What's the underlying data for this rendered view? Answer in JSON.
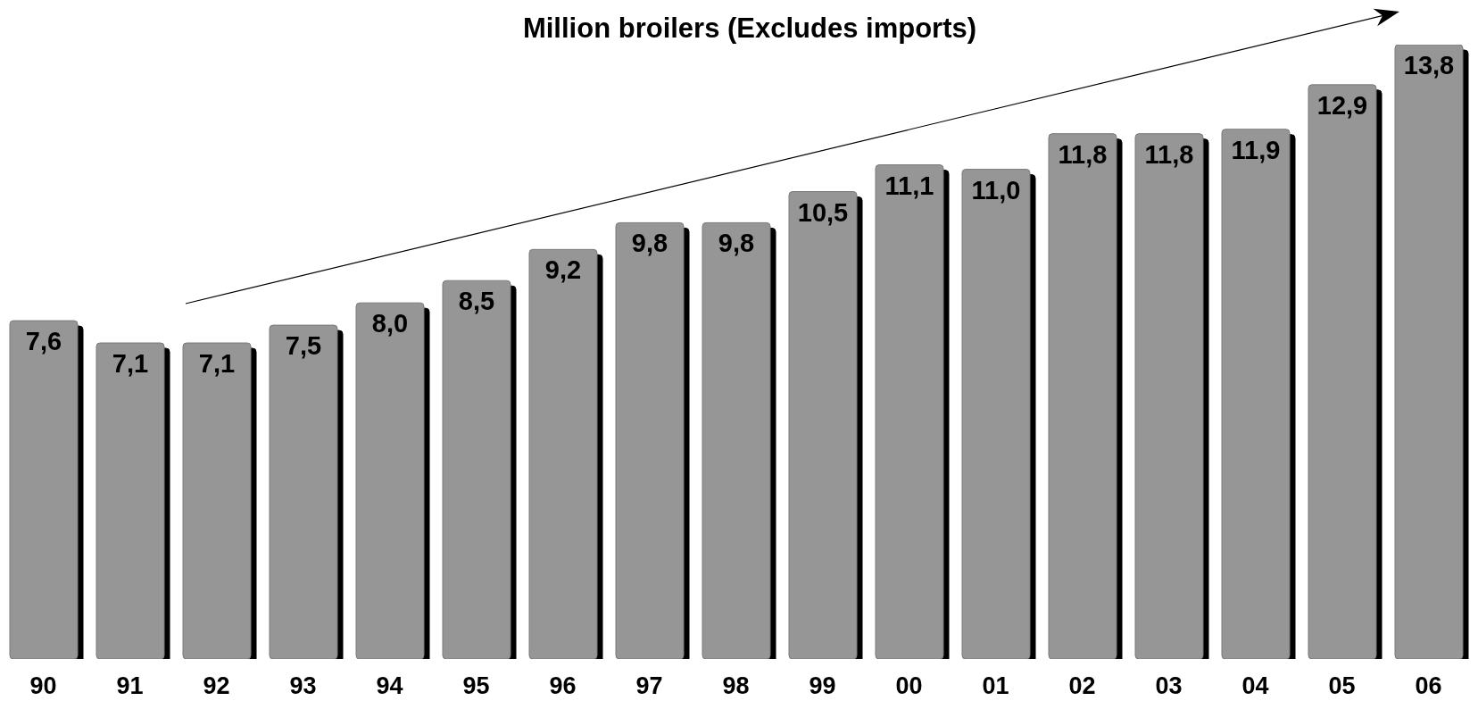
{
  "chart_data": {
    "type": "bar",
    "title": "Million broilers (Excludes imports)",
    "categories": [
      "90",
      "91",
      "92",
      "93",
      "94",
      "95",
      "96",
      "97",
      "98",
      "99",
      "00",
      "01",
      "02",
      "03",
      "04",
      "05",
      "06"
    ],
    "values": [
      7.6,
      7.1,
      7.1,
      7.5,
      8.0,
      8.5,
      9.2,
      9.8,
      9.8,
      10.5,
      11.1,
      11.0,
      11.8,
      11.8,
      11.9,
      12.9,
      13.8
    ],
    "value_labels": [
      "7,6",
      "7,1",
      "7,1",
      "7,5",
      "8,0",
      "8,5",
      "9,2",
      "9,8",
      "9,8",
      "10,5",
      "11,1",
      "11,0",
      "11,8",
      "11,8",
      "11,9",
      "12,9",
      "13,8"
    ],
    "color": "#969696",
    "tick_labels": "x"
  }
}
